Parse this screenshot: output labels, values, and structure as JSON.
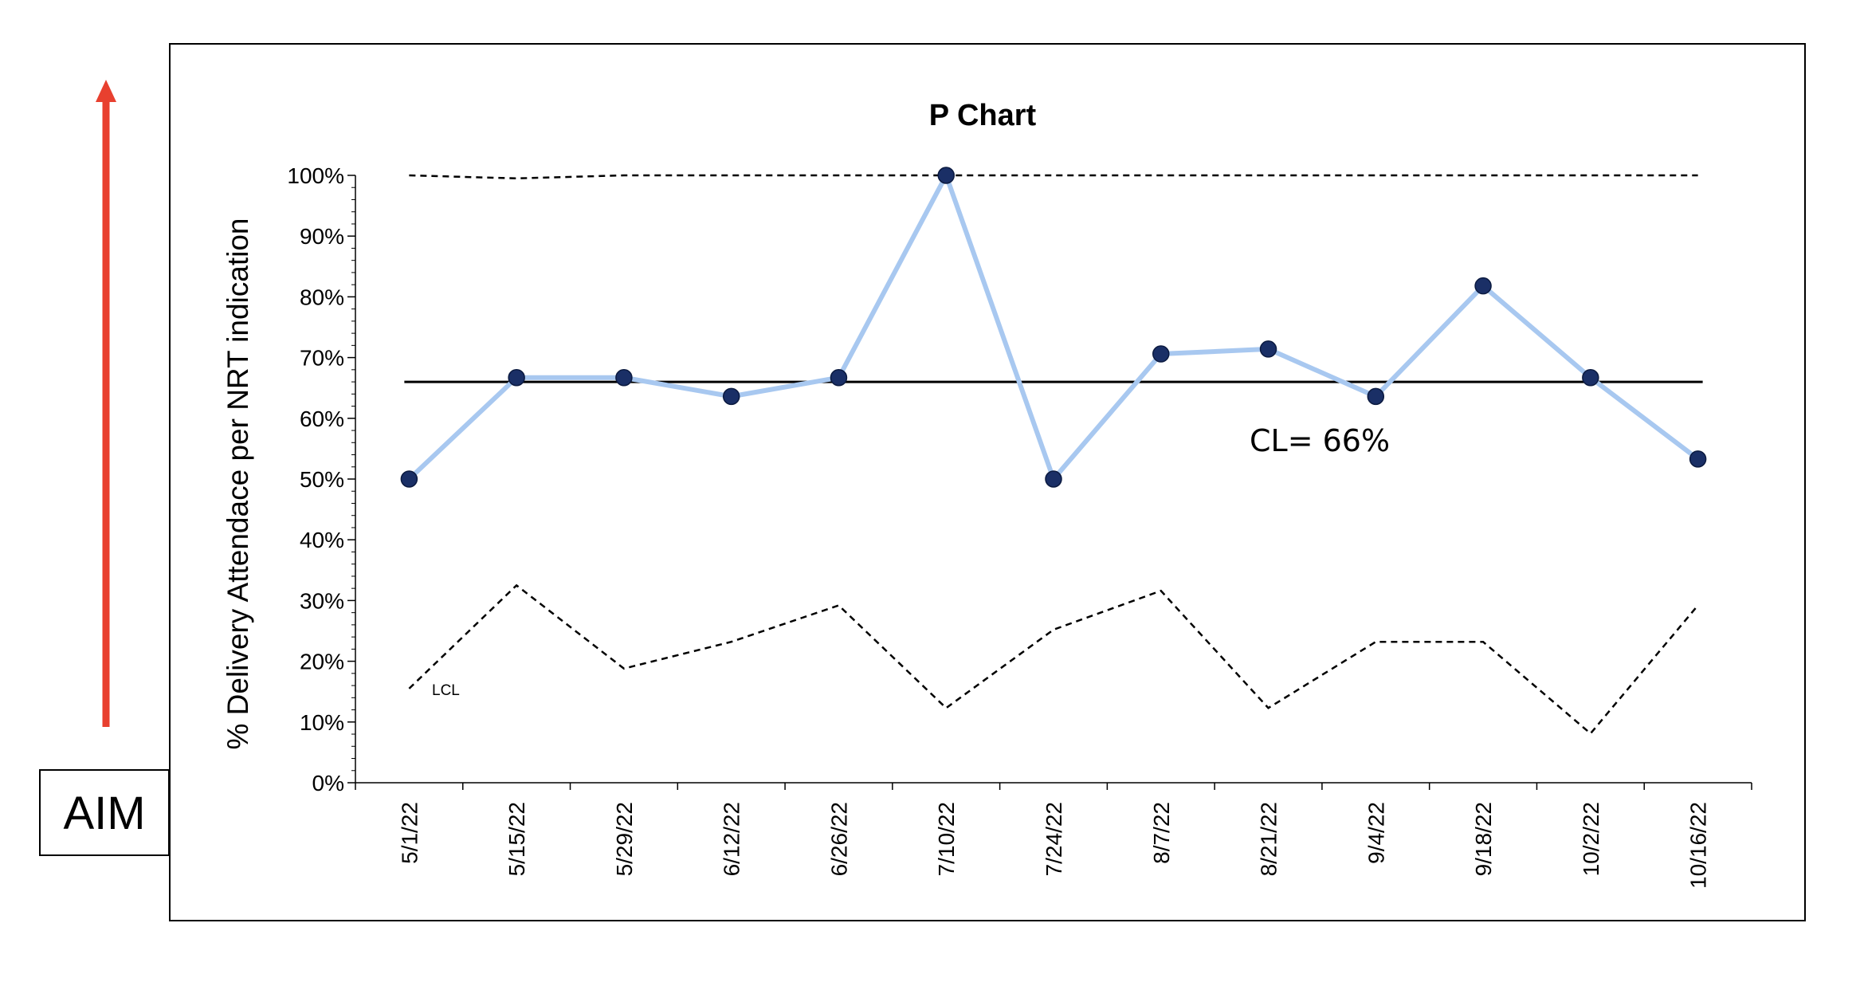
{
  "aim": {
    "label": "AIM",
    "arrow_color": "#e8402f"
  },
  "chart_data": {
    "type": "line",
    "title": "P Chart",
    "ylabel": "% Delivery Attendace per NRT indication",
    "xlabel": "",
    "ylim": [
      0,
      100
    ],
    "y_ticks": [
      0,
      10,
      20,
      30,
      40,
      50,
      60,
      70,
      80,
      90,
      100
    ],
    "y_tick_format": "{v}%",
    "categories": [
      "5/1/22",
      "5/15/22",
      "5/29/22",
      "6/12/22",
      "6/26/22",
      "7/10/22",
      "7/24/22",
      "8/7/22",
      "8/21/22",
      "9/4/22",
      "9/18/22",
      "10/2/22",
      "10/16/22"
    ],
    "series": [
      {
        "values": [
          50,
          66.7,
          66.7,
          63.6,
          66.7,
          100,
          50,
          70.6,
          71.4,
          63.6,
          81.8,
          66.7,
          53.3
        ],
        "color": "#a8c8f0",
        "marker_color": "#1a2f66"
      }
    ],
    "center_line": {
      "value": 66,
      "label": "CL= 66%"
    },
    "ucl": [
      100,
      99.5,
      100,
      100,
      100,
      100,
      100,
      100,
      100,
      100,
      100,
      100,
      100
    ],
    "lcl": {
      "label": "LCL",
      "values": [
        15.5,
        32.5,
        18.8,
        23.2,
        29.2,
        12.3,
        25.2,
        31.6,
        12.3,
        23.2,
        23.2,
        8.1,
        29.2
      ]
    },
    "grid": false
  }
}
